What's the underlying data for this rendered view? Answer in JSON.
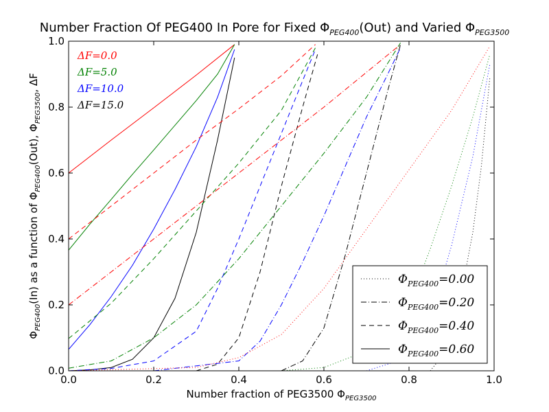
{
  "chart_data": {
    "type": "line",
    "title": "Number Fraction Of PEG400 In Pore for Fixed Φ_PEG400(Out) and Varied Φ_PEG3500",
    "title_parts": {
      "t1": "Number Fraction Of PEG400 In Pore for Fixed Φ",
      "t1_sub": "PEG400",
      "t2": "(Out) and Varied Φ",
      "t2_sub": "PEG3500"
    },
    "xlabel_parts": {
      "main": "Number fraction of PEG3500 Φ",
      "sub": "PEG3500"
    },
    "ylabel_parts": {
      "p1": "Φ",
      "s1": "PEG400",
      "p2": "(In) as a function of Φ",
      "s2": "PEG400",
      "p3": "(Out), Φ",
      "s3": "PEG3500",
      "p4": ", ΔF"
    },
    "xlim": [
      0.0,
      1.0
    ],
    "ylim": [
      0.0,
      1.0
    ],
    "xticks": [
      "0.0",
      "0.2",
      "0.4",
      "0.6",
      "0.8",
      "1.0"
    ],
    "yticks": [
      "0.0",
      "0.2",
      "0.4",
      "0.6",
      "0.8",
      "1.0"
    ],
    "annotations": [
      {
        "text": "ΔF=0.0",
        "color": "#ff0000"
      },
      {
        "text": "ΔF=5.0",
        "color": "#008000"
      },
      {
        "text": "ΔF=10.0",
        "color": "#0000ff"
      },
      {
        "text": "ΔF=15.0",
        "color": "#000000"
      }
    ],
    "legend_position": "bottom-right",
    "legend": [
      {
        "label": "Φ_PEG400 =0.00",
        "main": "Φ",
        "sub": "PEG400",
        "value": "=0.00",
        "style": "dotted"
      },
      {
        "label": "Φ_PEG400 =0.20",
        "main": "Φ",
        "sub": "PEG400",
        "value": "=0.20",
        "style": "dashdot"
      },
      {
        "label": "Φ_PEG400 =0.40",
        "main": "Φ",
        "sub": "PEG400",
        "value": "=0.40",
        "style": "dashed"
      },
      {
        "label": "Φ_PEG400 =0.60",
        "main": "Φ",
        "sub": "PEG400",
        "value": "=0.60",
        "style": "solid"
      }
    ],
    "series": [
      {
        "deltaF": "0.0",
        "phi400": "0.60",
        "style": "solid",
        "color": "#ff0000",
        "x": [
          0.0,
          0.1,
          0.2,
          0.3,
          0.39
        ],
        "y": [
          0.6,
          0.7,
          0.798,
          0.897,
          0.99
        ]
      },
      {
        "deltaF": "5.0",
        "phi400": "0.60",
        "style": "solid",
        "color": "#008000",
        "x": [
          0.0,
          0.05,
          0.1,
          0.15,
          0.2,
          0.25,
          0.3,
          0.35,
          0.39
        ],
        "y": [
          0.366,
          0.445,
          0.52,
          0.596,
          0.67,
          0.745,
          0.82,
          0.9,
          0.99
        ]
      },
      {
        "deltaF": "10.0",
        "phi400": "0.60",
        "style": "solid",
        "color": "#0000ff",
        "x": [
          0.0,
          0.05,
          0.1,
          0.15,
          0.2,
          0.25,
          0.3,
          0.35,
          0.39
        ],
        "y": [
          0.065,
          0.14,
          0.225,
          0.32,
          0.43,
          0.55,
          0.68,
          0.83,
          0.975
        ]
      },
      {
        "deltaF": "15.0",
        "phi400": "0.60",
        "style": "solid",
        "color": "#000000",
        "x": [
          0.0,
          0.05,
          0.1,
          0.15,
          0.2,
          0.25,
          0.3,
          0.35,
          0.39
        ],
        "y": [
          0.0,
          0.003,
          0.01,
          0.035,
          0.1,
          0.22,
          0.42,
          0.7,
          0.95
        ]
      },
      {
        "deltaF": "0.0",
        "phi400": "0.40",
        "style": "dashed",
        "color": "#ff0000",
        "x": [
          0.0,
          0.1,
          0.2,
          0.3,
          0.4,
          0.5,
          0.58
        ],
        "y": [
          0.4,
          0.5,
          0.6,
          0.7,
          0.795,
          0.895,
          0.99
        ]
      },
      {
        "deltaF": "5.0",
        "phi400": "0.40",
        "style": "dashed",
        "color": "#008000",
        "x": [
          0.0,
          0.1,
          0.2,
          0.3,
          0.4,
          0.5,
          0.58
        ],
        "y": [
          0.098,
          0.205,
          0.34,
          0.485,
          0.63,
          0.79,
          0.98
        ]
      },
      {
        "deltaF": "10.0",
        "phi400": "0.40",
        "style": "dashed",
        "color": "#0000ff",
        "x": [
          0.0,
          0.1,
          0.2,
          0.3,
          0.35,
          0.4,
          0.45,
          0.5,
          0.55,
          0.58
        ],
        "y": [
          0.0,
          0.007,
          0.03,
          0.12,
          0.25,
          0.4,
          0.56,
          0.72,
          0.88,
          0.975
        ]
      },
      {
        "deltaF": "15.0",
        "phi400": "0.40",
        "style": "dashed",
        "color": "#000000",
        "x": [
          0.3,
          0.35,
          0.4,
          0.45,
          0.5,
          0.55,
          0.585
        ],
        "y": [
          0.0,
          0.02,
          0.1,
          0.3,
          0.56,
          0.8,
          0.96
        ]
      },
      {
        "deltaF": "0.0",
        "phi400": "0.20",
        "style": "dashdot",
        "color": "#ff0000",
        "x": [
          0.0,
          0.2,
          0.4,
          0.6,
          0.78
        ],
        "y": [
          0.2,
          0.4,
          0.6,
          0.8,
          0.99
        ]
      },
      {
        "deltaF": "5.0",
        "phi400": "0.20",
        "style": "dashdot",
        "color": "#008000",
        "x": [
          0.0,
          0.1,
          0.2,
          0.3,
          0.4,
          0.5,
          0.6,
          0.7,
          0.78
        ],
        "y": [
          0.008,
          0.03,
          0.1,
          0.2,
          0.34,
          0.5,
          0.66,
          0.83,
          0.995
        ]
      },
      {
        "deltaF": "10.0",
        "phi400": "0.20",
        "style": "dashdot",
        "color": "#0000ff",
        "x": [
          0.2,
          0.4,
          0.45,
          0.5,
          0.55,
          0.6,
          0.65,
          0.7,
          0.75,
          0.78
        ],
        "y": [
          0.0,
          0.03,
          0.09,
          0.2,
          0.33,
          0.47,
          0.62,
          0.77,
          0.9,
          0.98
        ]
      },
      {
        "deltaF": "15.0",
        "phi400": "0.20",
        "style": "dashdot",
        "color": "#000000",
        "x": [
          0.5,
          0.55,
          0.6,
          0.65,
          0.7,
          0.75,
          0.78
        ],
        "y": [
          0.0,
          0.03,
          0.13,
          0.35,
          0.6,
          0.85,
          0.99
        ]
      },
      {
        "deltaF": "0.0",
        "phi400": "0.00",
        "style": "dotted",
        "color": "#ff0000",
        "x": [
          0.0,
          0.3,
          0.4,
          0.5,
          0.6,
          0.7,
          0.8,
          0.9,
          0.99
        ],
        "y": [
          0.0,
          0.01,
          0.04,
          0.11,
          0.25,
          0.43,
          0.61,
          0.79,
          0.985
        ]
      },
      {
        "deltaF": "5.0",
        "phi400": "0.00",
        "style": "dotted",
        "color": "#008000",
        "x": [
          0.5,
          0.6,
          0.7,
          0.8,
          0.85,
          0.9,
          0.95,
          0.99
        ],
        "y": [
          0.0,
          0.01,
          0.06,
          0.2,
          0.37,
          0.56,
          0.77,
          0.96
        ]
      },
      {
        "deltaF": "10.0",
        "phi400": "0.00",
        "style": "dotted",
        "color": "#0000ff",
        "x": [
          0.7,
          0.8,
          0.85,
          0.9,
          0.95,
          0.99
        ],
        "y": [
          0.0,
          0.04,
          0.16,
          0.38,
          0.65,
          0.93
        ]
      },
      {
        "deltaF": "15.0",
        "phi400": "0.00",
        "style": "dotted",
        "color": "#000000",
        "x": [
          0.85,
          0.9,
          0.95,
          0.97,
          0.99
        ],
        "y": [
          0.0,
          0.08,
          0.42,
          0.62,
          0.89
        ]
      }
    ]
  }
}
